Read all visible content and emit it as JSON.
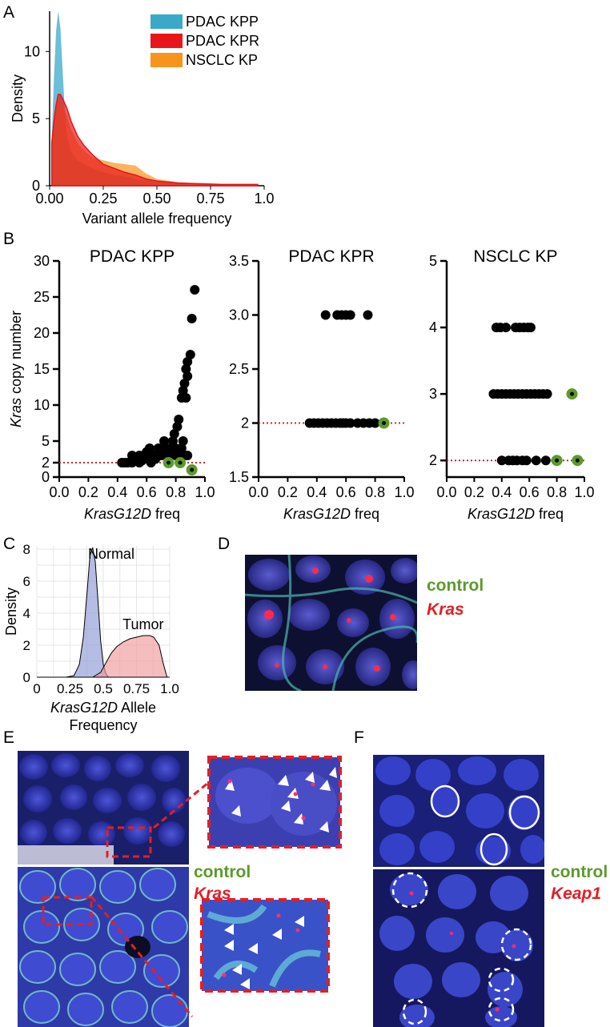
{
  "panels": {
    "a": "A",
    "b": "B",
    "c": "C",
    "d": "D",
    "e": "E",
    "f": "F"
  },
  "colors": {
    "kpp": "#3aa9c9",
    "kpr": "#e8151b",
    "nsclc": "#f7941d",
    "green": "#5a9b2a",
    "red_label": "#e21f26",
    "normal": "#8f9ad6",
    "tumor": "#f09a9b",
    "refline": "#c0282e"
  },
  "chart_data": [
    {
      "id": "A",
      "type": "area",
      "xlabel": "Variant allele frequency",
      "ylabel": "Density",
      "xlim": [
        0,
        1.0
      ],
      "ylim": [
        0,
        13
      ],
      "xticks": [
        "0.00",
        "0.25",
        "0.50",
        "0.75",
        "1.0"
      ],
      "yticks": [
        "0",
        "5",
        "10"
      ],
      "legend_position": "top-right",
      "series": [
        {
          "name": "PDAC KPP",
          "x": [
            0.01,
            0.02,
            0.03,
            0.04,
            0.05,
            0.06,
            0.07,
            0.08,
            0.1,
            0.13,
            0.16,
            0.2,
            0.25,
            0.3,
            0.35,
            0.4,
            0.5,
            0.6,
            0.7,
            0.8,
            0.9,
            0.97
          ],
          "y": [
            3.5,
            8.0,
            11.5,
            13.0,
            11.8,
            8.8,
            5.8,
            3.8,
            2.5,
            1.9,
            1.6,
            1.3,
            1.0,
            0.8,
            0.7,
            0.5,
            0.3,
            0.2,
            0.15,
            0.1,
            0.1,
            0.1
          ]
        },
        {
          "name": "PDAC KPR",
          "x": [
            0.01,
            0.02,
            0.03,
            0.04,
            0.05,
            0.06,
            0.08,
            0.1,
            0.13,
            0.16,
            0.2,
            0.25,
            0.3,
            0.35,
            0.4,
            0.45,
            0.5,
            0.6,
            0.7,
            0.8,
            0.9,
            0.97
          ],
          "y": [
            3.2,
            4.8,
            6.0,
            6.8,
            6.8,
            6.5,
            5.8,
            4.8,
            3.7,
            3.0,
            2.3,
            1.6,
            1.3,
            1.0,
            0.8,
            0.5,
            0.35,
            0.2,
            0.15,
            0.1,
            0.1,
            0.1
          ]
        },
        {
          "name": "NSCLC KP",
          "x": [
            0.01,
            0.02,
            0.03,
            0.04,
            0.05,
            0.06,
            0.08,
            0.1,
            0.13,
            0.16,
            0.2,
            0.25,
            0.3,
            0.35,
            0.4,
            0.45,
            0.5,
            0.6,
            0.7,
            0.8,
            0.9,
            0.97
          ],
          "y": [
            2.4,
            4.5,
            6.0,
            6.5,
            6.3,
            6.0,
            5.2,
            4.2,
            3.2,
            2.6,
            2.1,
            1.9,
            1.7,
            1.6,
            1.5,
            0.9,
            0.5,
            0.25,
            0.15,
            0.1,
            0.1,
            0.1
          ]
        }
      ]
    },
    {
      "id": "B1",
      "type": "scatter",
      "title": "PDAC KPP",
      "xlabel_italic": "KrasG12D",
      "xlabel_rest": " freq",
      "ylabel_italic": "Kras",
      "ylabel_rest": " copy number",
      "xlim": [
        0,
        1.0
      ],
      "ylim": [
        0,
        30
      ],
      "xticks": [
        "0.0",
        "0.2",
        "0.4",
        "0.6",
        "0.8",
        "1.0"
      ],
      "yticks": [
        "0",
        "2",
        "5",
        "10",
        "15",
        "20",
        "25",
        "30"
      ],
      "refline_y": 2,
      "points_black": [
        [
          0.43,
          2
        ],
        [
          0.47,
          2
        ],
        [
          0.5,
          2
        ],
        [
          0.55,
          2
        ],
        [
          0.45,
          2
        ],
        [
          0.52,
          2.5
        ],
        [
          0.5,
          3
        ],
        [
          0.55,
          3
        ],
        [
          0.6,
          3
        ],
        [
          0.57,
          2.3
        ],
        [
          0.63,
          2
        ],
        [
          0.65,
          3
        ],
        [
          0.6,
          3.5
        ],
        [
          0.62,
          4
        ],
        [
          0.67,
          3
        ],
        [
          0.68,
          4
        ],
        [
          0.7,
          3
        ],
        [
          0.7,
          4
        ],
        [
          0.72,
          5
        ],
        [
          0.74,
          4
        ],
        [
          0.76,
          3
        ],
        [
          0.77,
          4
        ],
        [
          0.78,
          5
        ],
        [
          0.8,
          3
        ],
        [
          0.79,
          6
        ],
        [
          0.81,
          7
        ],
        [
          0.82,
          8
        ],
        [
          0.8,
          4
        ],
        [
          0.84,
          4
        ],
        [
          0.85,
          5
        ],
        [
          0.86,
          3
        ],
        [
          0.84,
          11
        ],
        [
          0.85,
          12
        ],
        [
          0.86,
          13
        ],
        [
          0.87,
          11
        ],
        [
          0.87,
          15
        ],
        [
          0.88,
          16
        ],
        [
          0.88,
          14
        ],
        [
          0.9,
          17
        ],
        [
          0.91,
          22
        ],
        [
          0.93,
          26
        ],
        [
          0.88,
          3
        ],
        [
          0.83,
          3.5
        ],
        [
          0.75,
          3.5
        ],
        [
          0.66,
          2.5
        ],
        [
          0.58,
          3
        ]
      ],
      "points_green": [
        [
          0.75,
          2
        ],
        [
          0.83,
          2
        ],
        [
          0.91,
          1
        ]
      ]
    },
    {
      "id": "B2",
      "type": "scatter",
      "title": "PDAC KPR",
      "xlabel_italic": "KrasG12D",
      "xlabel_rest": " freq",
      "xlim": [
        0,
        1.0
      ],
      "ylim": [
        1.5,
        3.5
      ],
      "xticks": [
        "0.0",
        "0.2",
        "0.4",
        "0.6",
        "0.8",
        "1.0"
      ],
      "yticks": [
        "1.5",
        "2",
        "2.5",
        "3.0",
        "3.5"
      ],
      "refline_y": 2,
      "points_black": [
        [
          0.35,
          2
        ],
        [
          0.38,
          2
        ],
        [
          0.41,
          2
        ],
        [
          0.44,
          2
        ],
        [
          0.47,
          2
        ],
        [
          0.5,
          2
        ],
        [
          0.53,
          2
        ],
        [
          0.56,
          2
        ],
        [
          0.58,
          2
        ],
        [
          0.6,
          2
        ],
        [
          0.63,
          2
        ],
        [
          0.68,
          2
        ],
        [
          0.72,
          2
        ],
        [
          0.76,
          2
        ],
        [
          0.8,
          2
        ],
        [
          0.46,
          3
        ],
        [
          0.54,
          3
        ],
        [
          0.57,
          3
        ],
        [
          0.6,
          3
        ],
        [
          0.63,
          3
        ],
        [
          0.75,
          3
        ]
      ],
      "points_green": [
        [
          0.86,
          2
        ]
      ]
    },
    {
      "id": "B3",
      "type": "scatter",
      "title": "NSCLC KP",
      "xlabel_italic": "KrasG12D",
      "xlabel_rest": " freq",
      "xlim": [
        0,
        1.0
      ],
      "ylim": [
        1.75,
        5
      ],
      "xticks": [
        "0.0",
        "0.2",
        "0.4",
        "0.6",
        "0.8",
        "1.0"
      ],
      "yticks": [
        "2",
        "3",
        "4",
        "5"
      ],
      "refline_y": 2,
      "points_black": [
        [
          0.36,
          4
        ],
        [
          0.39,
          4
        ],
        [
          0.43,
          4
        ],
        [
          0.5,
          4
        ],
        [
          0.53,
          4
        ],
        [
          0.56,
          4
        ],
        [
          0.59,
          4
        ],
        [
          0.61,
          4
        ],
        [
          0.34,
          3
        ],
        [
          0.37,
          3
        ],
        [
          0.4,
          3
        ],
        [
          0.43,
          3
        ],
        [
          0.46,
          3
        ],
        [
          0.49,
          3
        ],
        [
          0.52,
          3
        ],
        [
          0.55,
          3
        ],
        [
          0.58,
          3
        ],
        [
          0.61,
          3
        ],
        [
          0.64,
          3
        ],
        [
          0.67,
          3
        ],
        [
          0.7,
          3
        ],
        [
          0.73,
          3
        ],
        [
          0.4,
          2
        ],
        [
          0.45,
          2
        ],
        [
          0.48,
          2
        ],
        [
          0.51,
          2
        ],
        [
          0.55,
          2
        ],
        [
          0.58,
          2
        ],
        [
          0.65,
          2
        ],
        [
          0.72,
          2
        ]
      ],
      "points_green": [
        [
          0.91,
          3
        ],
        [
          0.8,
          2
        ],
        [
          0.95,
          2
        ]
      ]
    },
    {
      "id": "C",
      "type": "area",
      "xlabel_italic": "KrasG12D",
      "xlabel_rest": " Allele",
      "xlabel_line2": "Frequency",
      "ylabel": "Density",
      "xlim": [
        0,
        1.0
      ],
      "ylim": [
        0,
        8.2
      ],
      "xticks": [
        "0",
        "0.25",
        "0.5",
        "0.75",
        "1.0"
      ],
      "yticks": [
        "0",
        "2",
        "4",
        "6",
        "8"
      ],
      "annotations": [
        "Normal",
        "Tumor"
      ],
      "series": [
        {
          "name": "Normal",
          "x": [
            0.22,
            0.28,
            0.32,
            0.35,
            0.38,
            0.4,
            0.42,
            0.44,
            0.46,
            0.48,
            0.5,
            0.52,
            0.54
          ],
          "y": [
            0.0,
            0.1,
            0.8,
            2.5,
            5.5,
            7.6,
            8.1,
            7.2,
            4.8,
            2.3,
            0.8,
            0.2,
            0.0
          ]
        },
        {
          "name": "Tumor",
          "x": [
            0.42,
            0.48,
            0.52,
            0.56,
            0.6,
            0.65,
            0.7,
            0.75,
            0.8,
            0.85,
            0.88,
            0.92,
            0.95,
            0.98
          ],
          "y": [
            0.0,
            0.3,
            0.9,
            1.5,
            1.9,
            2.2,
            2.4,
            2.5,
            2.6,
            2.6,
            2.5,
            2.0,
            0.9,
            0.0
          ]
        }
      ]
    }
  ],
  "legend_d": {
    "control": "control",
    "kras": "Kras"
  },
  "legend_e": {
    "control": "control",
    "kras": "Kras"
  },
  "legend_f": {
    "control": "control",
    "keap1": "Keap1"
  }
}
